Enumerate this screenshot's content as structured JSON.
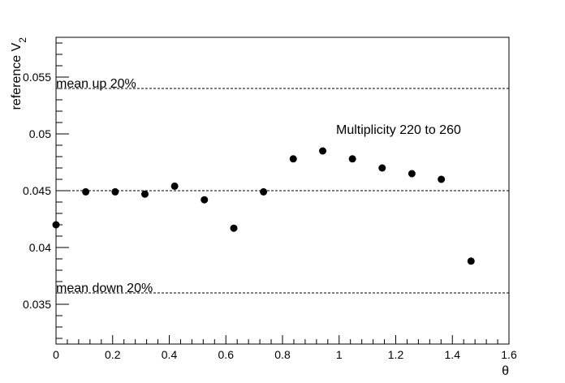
{
  "chart_data": {
    "type": "scatter",
    "xlabel": "θ",
    "ylabel_main": "reference V",
    "ylabel_sub": "2",
    "xlim": [
      0,
      1.6
    ],
    "ylim": [
      0.0315,
      0.0585
    ],
    "x_ticks": [
      0,
      0.2,
      0.4,
      0.6,
      0.8,
      1,
      1.2,
      1.4,
      1.6
    ],
    "x_tick_labels": [
      "0",
      "0.2",
      "0.4",
      "0.6",
      "0.8",
      "1",
      "1.2",
      "1.4",
      "1.6"
    ],
    "y_ticks": [
      0.035,
      0.04,
      0.045,
      0.05,
      0.055
    ],
    "y_tick_labels": [
      "0.035",
      "0.04",
      "0.045",
      "0.05",
      "0.055"
    ],
    "x_minor_step": 0.04,
    "y_minor_step": 0.001,
    "points": [
      {
        "x": 0.0,
        "y": 0.042
      },
      {
        "x": 0.105,
        "y": 0.0449
      },
      {
        "x": 0.209,
        "y": 0.0449
      },
      {
        "x": 0.314,
        "y": 0.0447
      },
      {
        "x": 0.419,
        "y": 0.0454
      },
      {
        "x": 0.524,
        "y": 0.0442
      },
      {
        "x": 0.628,
        "y": 0.0417
      },
      {
        "x": 0.733,
        "y": 0.0449
      },
      {
        "x": 0.838,
        "y": 0.0478
      },
      {
        "x": 0.942,
        "y": 0.0485
      },
      {
        "x": 1.047,
        "y": 0.0478
      },
      {
        "x": 1.152,
        "y": 0.047
      },
      {
        "x": 1.257,
        "y": 0.0465
      },
      {
        "x": 1.361,
        "y": 0.046
      },
      {
        "x": 1.466,
        "y": 0.0388
      }
    ],
    "reference_lines": [
      {
        "y": 0.054,
        "style": "dashed",
        "label": "mean up 20%"
      },
      {
        "y": 0.045,
        "style": "dashed",
        "label": ""
      },
      {
        "y": 0.036,
        "style": "dashed",
        "label": "mean down 20%"
      }
    ],
    "annotation": "Multiplicity 220 to 260",
    "marker_color": "#000000",
    "grid": false
  }
}
